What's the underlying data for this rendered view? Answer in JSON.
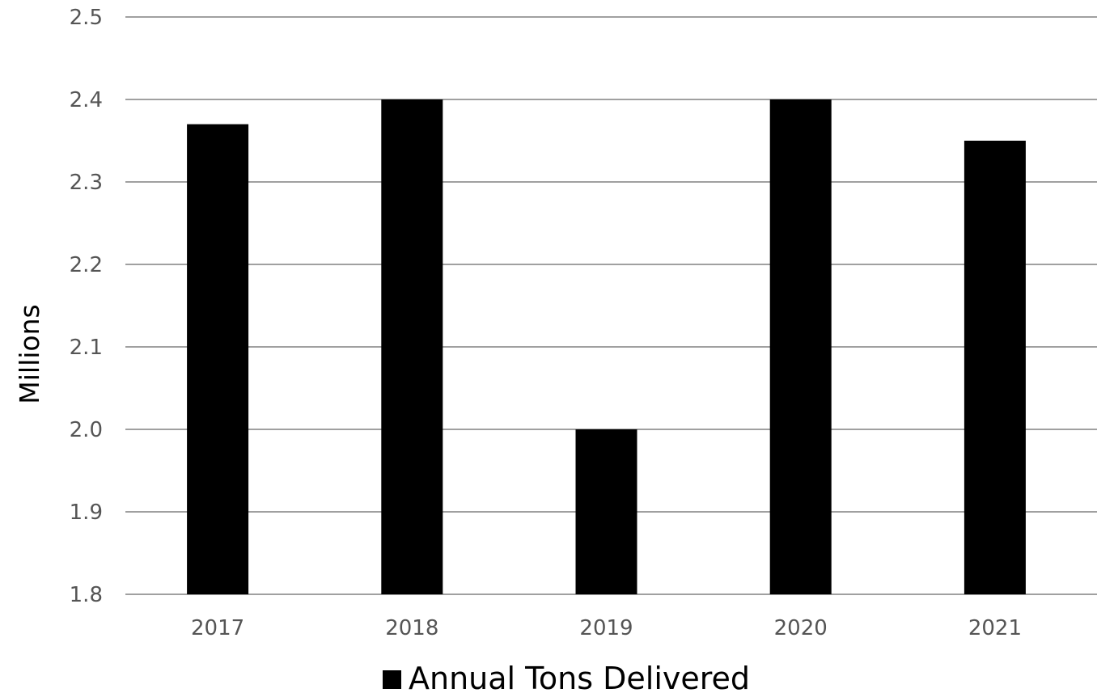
{
  "chart_data": {
    "type": "bar",
    "categories": [
      "2017",
      "2018",
      "2019",
      "2020",
      "2021"
    ],
    "series": [
      {
        "name": "Annual Tons Delivered",
        "values": [
          2.37,
          2.4,
          2.0,
          2.4,
          2.35
        ],
        "color": "#000000"
      }
    ],
    "ylabel": "Millions",
    "xlabel": "",
    "ylim": [
      1.8,
      2.5
    ],
    "yticks": [
      "1.8",
      "1.9",
      "2.0",
      "2.1",
      "2.2",
      "2.3",
      "2.4",
      "2.5"
    ],
    "grid": true,
    "gridColor": "#808080",
    "legend": "bottom"
  }
}
